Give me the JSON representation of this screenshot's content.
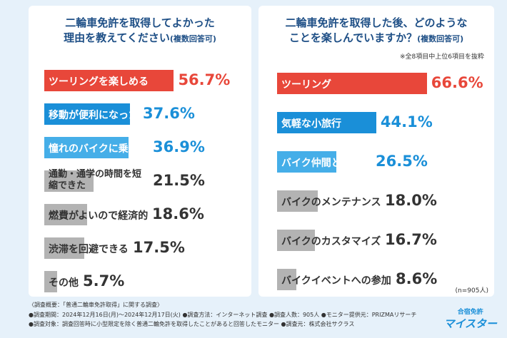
{
  "chart_data": [
    {
      "type": "bar",
      "title": [
        "二輪車免許を取得してよかった",
        "理由を教えてください"
      ],
      "subtitle": "(複数回答可)",
      "categories": [
        "ツーリングを楽しめる",
        "移動が便利になった",
        "憧れのバイクに乗れる",
        "通勤・通学の時間を短縮できた",
        "燃費がよいので経済的",
        "渋滞を回避できる",
        "その他"
      ],
      "values": [
        56.7,
        37.6,
        36.9,
        21.5,
        18.6,
        17.5,
        5.7
      ],
      "value_labels": [
        "56.7%",
        "37.6%",
        "36.9%",
        "21.5%",
        "18.6%",
        "17.5%",
        "5.7%"
      ],
      "colors": [
        "#e8473a",
        "#1a8fd8",
        "#45aee8",
        "#b3b3b3",
        "#b3b3b3",
        "#b3b3b3",
        "#b3b3b3"
      ]
    },
    {
      "type": "bar",
      "title": [
        "二輪車免許を取得した後、どのような",
        "ことを楽しんでいますか？"
      ],
      "subtitle": "(複数回答可)",
      "note": "※全8項目中上位6項目を抜粋",
      "categories": [
        "ツーリング",
        "気軽な小旅行",
        "バイク仲間との交流",
        "バイクのメンテナンス",
        "バイクのカスタマイズ",
        "バイクイベントへの参加"
      ],
      "values": [
        66.6,
        44.1,
        26.5,
        18.0,
        16.7,
        8.6
      ],
      "value_labels": [
        "66.6%",
        "44.1%",
        "26.5%",
        "18.0%",
        "16.7%",
        "8.6%"
      ],
      "colors": [
        "#e8473a",
        "#1a8fd8",
        "#45aee8",
        "#b3b3b3",
        "#b3b3b3",
        "#b3b3b3"
      ],
      "sample": "(n=905人)"
    }
  ],
  "footer": [
    "〈調査概要：「普通二輪車免許取得」に関する調査〉",
    "●調査期間：2024年12月16日(月)～2024年12月17日(火) ●調査方法：インターネット調査 ●調査人数：905人 ●モニター提供元：PRIZMAリサーチ",
    "●調査対象：調査回答時に小型限定を除く普通二輪免許を取得したことがあると回答したモニター ●調査元：株式会社サクラス"
  ],
  "logo": [
    "合宿免許",
    "マイスター"
  ]
}
